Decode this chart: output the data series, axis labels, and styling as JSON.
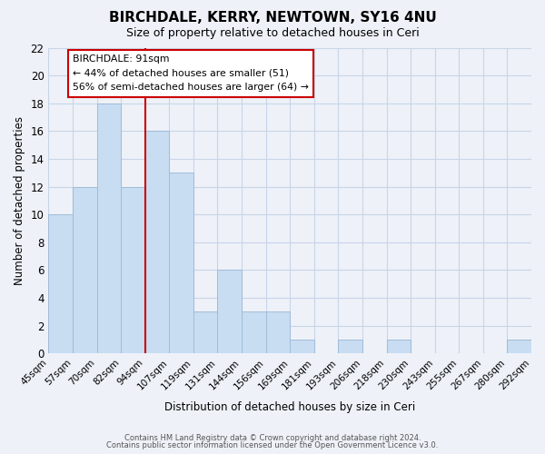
{
  "title": "BIRCHDALE, KERRY, NEWTOWN, SY16 4NU",
  "subtitle": "Size of property relative to detached houses in Ceri",
  "xlabel": "Distribution of detached houses by size in Ceri",
  "ylabel": "Number of detached properties",
  "bar_color": "#c8ddf2",
  "bar_edge_color": "#a0bcd8",
  "bins": [
    "45sqm",
    "57sqm",
    "70sqm",
    "82sqm",
    "94sqm",
    "107sqm",
    "119sqm",
    "131sqm",
    "144sqm",
    "156sqm",
    "169sqm",
    "181sqm",
    "193sqm",
    "206sqm",
    "218sqm",
    "230sqm",
    "243sqm",
    "255sqm",
    "267sqm",
    "280sqm",
    "292sqm"
  ],
  "values": [
    10,
    12,
    18,
    12,
    16,
    13,
    3,
    6,
    3,
    3,
    1,
    0,
    1,
    0,
    1,
    0,
    0,
    0,
    0,
    1
  ],
  "ylim": [
    0,
    22
  ],
  "yticks": [
    0,
    2,
    4,
    6,
    8,
    10,
    12,
    14,
    16,
    18,
    20,
    22
  ],
  "property_line_bin_index": 4,
  "property_line_color": "#cc0000",
  "annotation_title": "BIRCHDALE: 91sqm",
  "annotation_line1": "← 44% of detached houses are smaller (51)",
  "annotation_line2": "56% of semi-detached houses are larger (64) →",
  "annotation_box_facecolor": "#ffffff",
  "annotation_box_edgecolor": "#cc0000",
  "footer_line1": "Contains HM Land Registry data © Crown copyright and database right 2024.",
  "footer_line2": "Contains public sector information licensed under the Open Government Licence v3.0.",
  "grid_color": "#c8d4e8",
  "background_color": "#eef2f8"
}
